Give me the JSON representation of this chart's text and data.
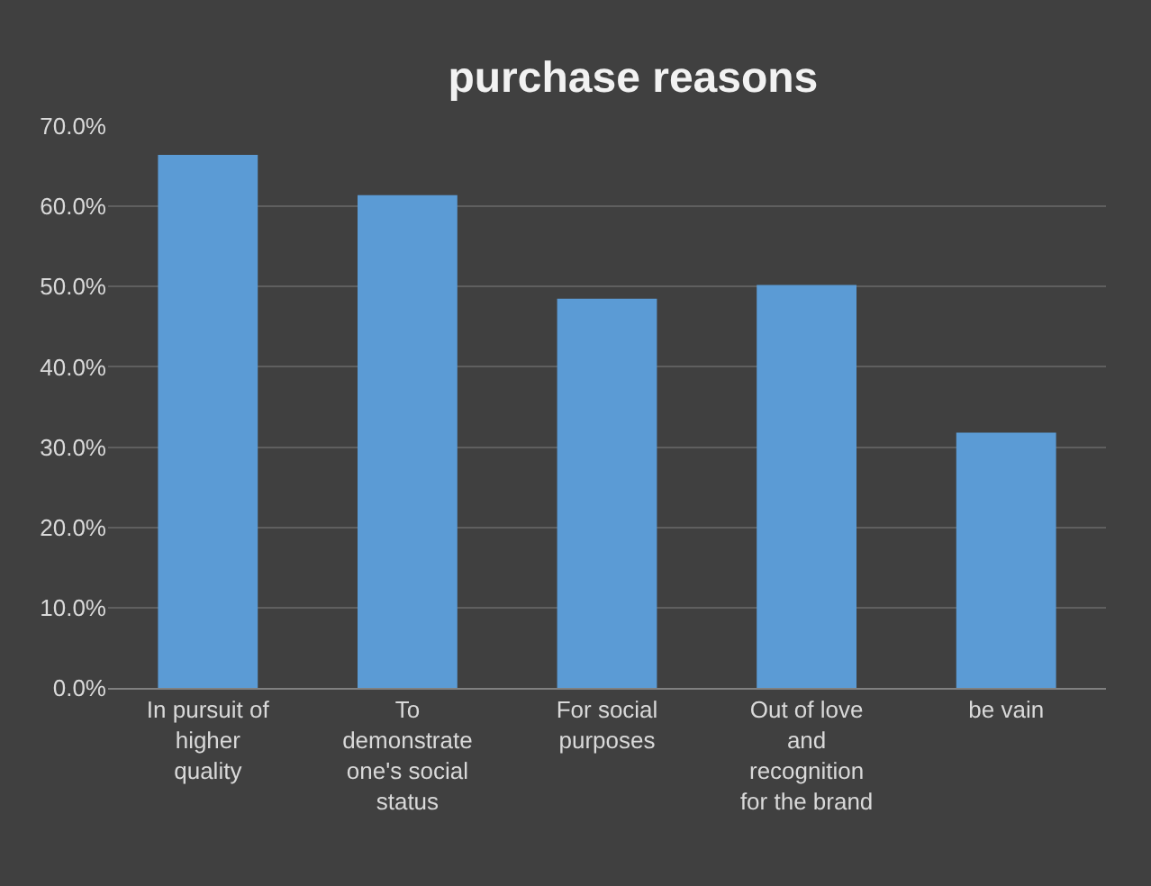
{
  "chart_data": {
    "type": "bar",
    "title": "purchase reasons",
    "categories": [
      "In pursuit of higher quality",
      "To demonstrate one's social status",
      "For social purposes",
      "Out of love and recognition for the brand",
      "be vain"
    ],
    "values": [
      66.4,
      61.4,
      48.5,
      50.2,
      31.8
    ],
    "color": "#5b9bd5",
    "ylim": [
      0,
      70
    ],
    "yticks": [
      {
        "value": 0,
        "label": "0.0%"
      },
      {
        "value": 10,
        "label": "10.0%"
      },
      {
        "value": 20,
        "label": "20.0%"
      },
      {
        "value": 30,
        "label": "30.0%"
      },
      {
        "value": 40,
        "label": "40.0%"
      },
      {
        "value": 50,
        "label": "50.0%"
      },
      {
        "value": 60,
        "label": "60.0%"
      },
      {
        "value": 70,
        "label": "70.0%"
      }
    ],
    "grid": "y"
  }
}
